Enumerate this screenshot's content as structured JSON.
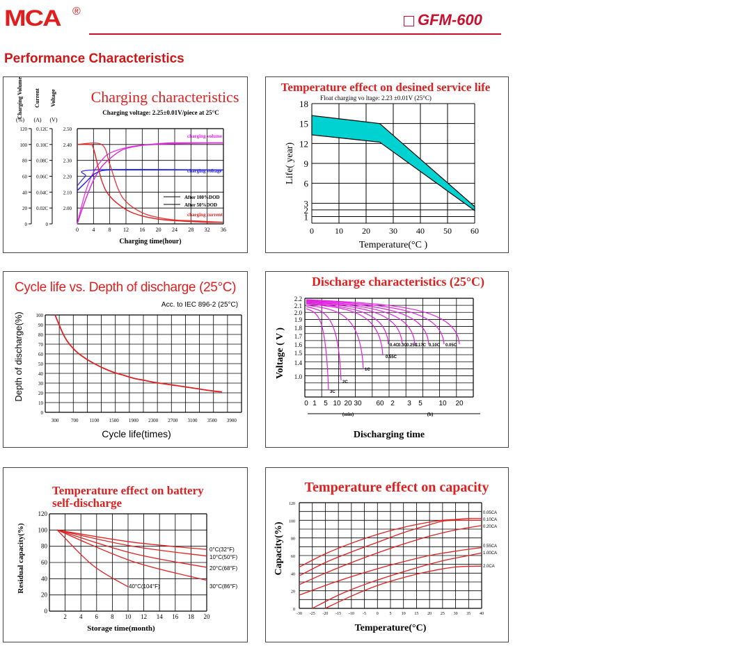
{
  "header": {
    "logo": "MCA",
    "registered": "®",
    "model": "GFM-600",
    "section_title": "Performance Characteristics"
  },
  "colors": {
    "brand": "#d01717",
    "cyan": "#00d2d2"
  },
  "chart_data": [
    {
      "id": "charging",
      "type": "line",
      "title": "Charging characteristics",
      "subtitle": "Charging voltage: 2.25±0.01V/piece at 25°C",
      "xlabel": "Charging time(hour)",
      "y_axes": [
        {
          "label": "Charging Volume",
          "unit": "(%)",
          "ticks": [
            "120",
            "100",
            "80",
            "60",
            "40",
            "20",
            "0"
          ]
        },
        {
          "label": "Current",
          "unit": "(A)",
          "ticks": [
            "0.12C",
            "0.10C",
            "0.08C",
            "0.06C",
            "0.04C",
            "0.02C",
            "0"
          ]
        },
        {
          "label": "Voltage",
          "unit": "(V)",
          "ticks": [
            "2.50",
            "2.40",
            "2.30",
            "2.20",
            "2.10",
            "2.00"
          ]
        }
      ],
      "x_ticks": [
        "0",
        "4",
        "8",
        "12",
        "16",
        "20",
        "24",
        "28",
        "32",
        "36"
      ],
      "xlim": [
        0,
        36
      ],
      "ylim": [
        0,
        120
      ],
      "series": [
        {
          "name": "charging volume",
          "color": "#e020e0",
          "x": [
            0,
            2,
            4,
            6,
            8,
            10,
            12,
            16,
            20,
            24,
            30,
            36
          ],
          "values": [
            0,
            30,
            55,
            72,
            82,
            90,
            95,
            99,
            101,
            102,
            102,
            102
          ]
        },
        {
          "name": "charging volume",
          "color": "#e020e0",
          "x": [
            0,
            2,
            4,
            6,
            8,
            12,
            16,
            24,
            36
          ],
          "values": [
            0,
            40,
            65,
            80,
            89,
            96,
            99,
            101,
            102
          ]
        },
        {
          "name": "charging voltage",
          "color": "#2020e0",
          "x": [
            0,
            2,
            4,
            6,
            8,
            10,
            14,
            20,
            36
          ],
          "values": [
            42,
            52,
            62,
            67,
            68,
            68,
            68,
            68,
            68
          ]
        },
        {
          "name": "charging voltage",
          "color": "#2020e0",
          "x": [
            0,
            2,
            4,
            36
          ],
          "values": [
            48,
            60,
            68,
            68
          ]
        },
        {
          "name": "charging current",
          "color": "#e02020",
          "x": [
            0,
            3,
            4,
            6,
            8,
            12,
            16,
            20,
            24,
            28,
            32,
            36
          ],
          "values": [
            100,
            100,
            95,
            55,
            35,
            18,
            10,
            6,
            4,
            3,
            2,
            2
          ]
        },
        {
          "name": "charging current",
          "color": "#e02020",
          "x": [
            0,
            6,
            8,
            10,
            12,
            16,
            20,
            24,
            28,
            32,
            36
          ],
          "values": [
            100,
            100,
            75,
            45,
            28,
            14,
            8,
            5,
            4,
            3,
            2
          ]
        }
      ],
      "legend": [
        "After 100%DOD",
        "After 50%DOD"
      ]
    },
    {
      "id": "temp_life",
      "type": "area",
      "title": "Temperature effect on desined service life",
      "subtitle": "Float charging vo ltage: 2.23 ±0.01V (25°C)",
      "xlabel": "Temperature(°C )",
      "ylabel": "Life( year)",
      "x_ticks": [
        "0",
        "10",
        "20",
        "30",
        "40",
        "50",
        "60"
      ],
      "y_ticks": [
        "18",
        "15",
        "12",
        "9",
        "6",
        "3",
        "2",
        "1"
      ],
      "xlim": [
        0,
        60
      ],
      "ylim": [
        0,
        18
      ],
      "band_upper": {
        "x": [
          0,
          25,
          60
        ],
        "values": [
          16.2,
          15,
          2.5
        ]
      },
      "band_lower": {
        "x": [
          0,
          25,
          60
        ],
        "values": [
          13.3,
          12.2,
          1.9
        ]
      }
    },
    {
      "id": "cycle_life",
      "type": "line",
      "title": "Cycle life vs. Depth of discharge (25°C)",
      "subtitle": "Acc. to IEC 896-2 (25°C)",
      "xlabel": "Cycle life(times)",
      "ylabel": "Depth of discharge(%)",
      "x_ticks": [
        "300",
        "700",
        "1100",
        "1500",
        "1900",
        "2300",
        "2700",
        "3100",
        "3500",
        "3900"
      ],
      "y_ticks": [
        "100",
        "90",
        "80",
        "70",
        "60",
        "50",
        "40",
        "30",
        "20",
        "10",
        "0"
      ],
      "xlim": [
        100,
        4100
      ],
      "ylim": [
        0,
        100
      ],
      "series": [
        {
          "name": "",
          "color": "#e02020",
          "x": [
            300,
            500,
            700,
            900,
            1100,
            1300,
            1500,
            1700,
            1900,
            2100,
            2300,
            2700,
            3100,
            3500,
            3700
          ],
          "values": [
            100,
            77,
            64,
            56,
            50,
            45,
            41,
            38,
            35,
            33,
            31,
            28,
            25,
            22,
            21
          ]
        }
      ]
    },
    {
      "id": "discharge",
      "type": "line",
      "title": "Discharge characteristics (25°C)",
      "xlabel": "Discharging time",
      "ylabel": "Voltage ( V )",
      "x_ticks": [
        "0",
        "1",
        "5",
        "10",
        "20",
        "30",
        "60",
        "2",
        "3",
        "5",
        "10",
        "20"
      ],
      "x_units": [
        "(min)",
        "(h)"
      ],
      "y_ticks": [
        "2.2",
        "2.1",
        "2.0",
        "1.9",
        "1.8",
        "1.7",
        "1.6",
        "1.5",
        "1.4",
        "1.0"
      ],
      "rates": [
        "0.05C",
        "0.10C",
        "0.17C",
        "0.25C",
        "0.3C",
        "0.4C",
        "0.55C",
        "1C",
        "2C",
        "3C"
      ],
      "rate_labels": [
        "0.4C",
        "0.3C",
        "0.25C",
        "0.17C",
        "0.10C",
        "0.05C",
        "0.55C",
        "1C",
        "2C",
        "3C"
      ]
    },
    {
      "id": "self_discharge",
      "type": "line",
      "title": "Temperature effect on battery self-discharge",
      "xlabel": "Storage time(month)",
      "ylabel": "Residual capacity(%)",
      "x_ticks": [
        "2",
        "4",
        "6",
        "8",
        "10",
        "12",
        "14",
        "16",
        "18",
        "20"
      ],
      "y_ticks": [
        "120",
        "100",
        "80",
        "60",
        "40",
        "20",
        "0"
      ],
      "xlim": [
        0,
        20
      ],
      "ylim": [
        0,
        120
      ],
      "series": [
        {
          "name": "0°C(32°F)",
          "color": "#e02020",
          "x": [
            1,
            20
          ],
          "values": [
            100,
            76
          ]
        },
        {
          "name": "10°C(50°F)",
          "color": "#e02020",
          "x": [
            1,
            20
          ],
          "values": [
            100,
            68
          ]
        },
        {
          "name": "20°C(68°F)",
          "color": "#e02020",
          "x": [
            1,
            20
          ],
          "values": [
            100,
            54
          ]
        },
        {
          "name": "30°C(86°F)",
          "color": "#e02020",
          "x": [
            1,
            20
          ],
          "values": [
            100,
            38
          ]
        },
        {
          "name": "40°C(104°F)",
          "color": "#e02020",
          "x": [
            1,
            10
          ],
          "values": [
            100,
            30
          ]
        }
      ]
    },
    {
      "id": "temp_capacity",
      "type": "line",
      "title": "Temperature effect on capacity",
      "xlabel": "Temperature(°C)",
      "ylabel": "Capacity(%)",
      "x_ticks": [
        "-30",
        "-25",
        "-20",
        "-15",
        "-10",
        "-5",
        "0",
        "5",
        "10",
        "15",
        "20",
        "25",
        "30",
        "35",
        "40"
      ],
      "y_ticks": [
        "120",
        "100",
        "80",
        "60",
        "40",
        "20",
        "0"
      ],
      "xlim": [
        -30,
        40
      ],
      "ylim": [
        0,
        120
      ],
      "series": [
        {
          "name": "0.05CA",
          "color": "#e02020",
          "x": [
            -30,
            -20,
            -10,
            0,
            10,
            20,
            25,
            30,
            35,
            40
          ],
          "values": [
            47,
            62,
            74,
            84,
            92,
            98,
            100,
            101,
            102,
            102
          ]
        },
        {
          "name": "0.10CA",
          "color": "#e02020",
          "x": [
            -30,
            -20,
            -10,
            0,
            10,
            20,
            25,
            30,
            40
          ],
          "values": [
            37,
            52,
            64,
            75,
            86,
            95,
            99,
            100,
            100
          ]
        },
        {
          "name": "0.20CA",
          "color": "#e02020",
          "x": [
            -30,
            -20,
            -10,
            0,
            10,
            20,
            30,
            40
          ],
          "values": [
            27,
            40,
            52,
            63,
            73,
            82,
            89,
            94
          ]
        },
        {
          "name": "0.55CA",
          "color": "#e02020",
          "x": [
            -30,
            -20,
            -10,
            0,
            10,
            20,
            30,
            40
          ],
          "values": [
            15,
            26,
            36,
            45,
            53,
            60,
            65,
            69
          ]
        },
        {
          "name": "1.00CA",
          "color": "#e02020",
          "x": [
            -25,
            -15,
            -5,
            5,
            15,
            25,
            35,
            40
          ],
          "values": [
            0,
            15,
            27,
            37,
            46,
            54,
            60,
            63
          ]
        },
        {
          "name": "2.0CA",
          "color": "#e02020",
          "x": [
            -20,
            -10,
            0,
            10,
            20,
            30,
            40
          ],
          "values": [
            0,
            14,
            26,
            35,
            42,
            47,
            48
          ]
        }
      ]
    }
  ]
}
